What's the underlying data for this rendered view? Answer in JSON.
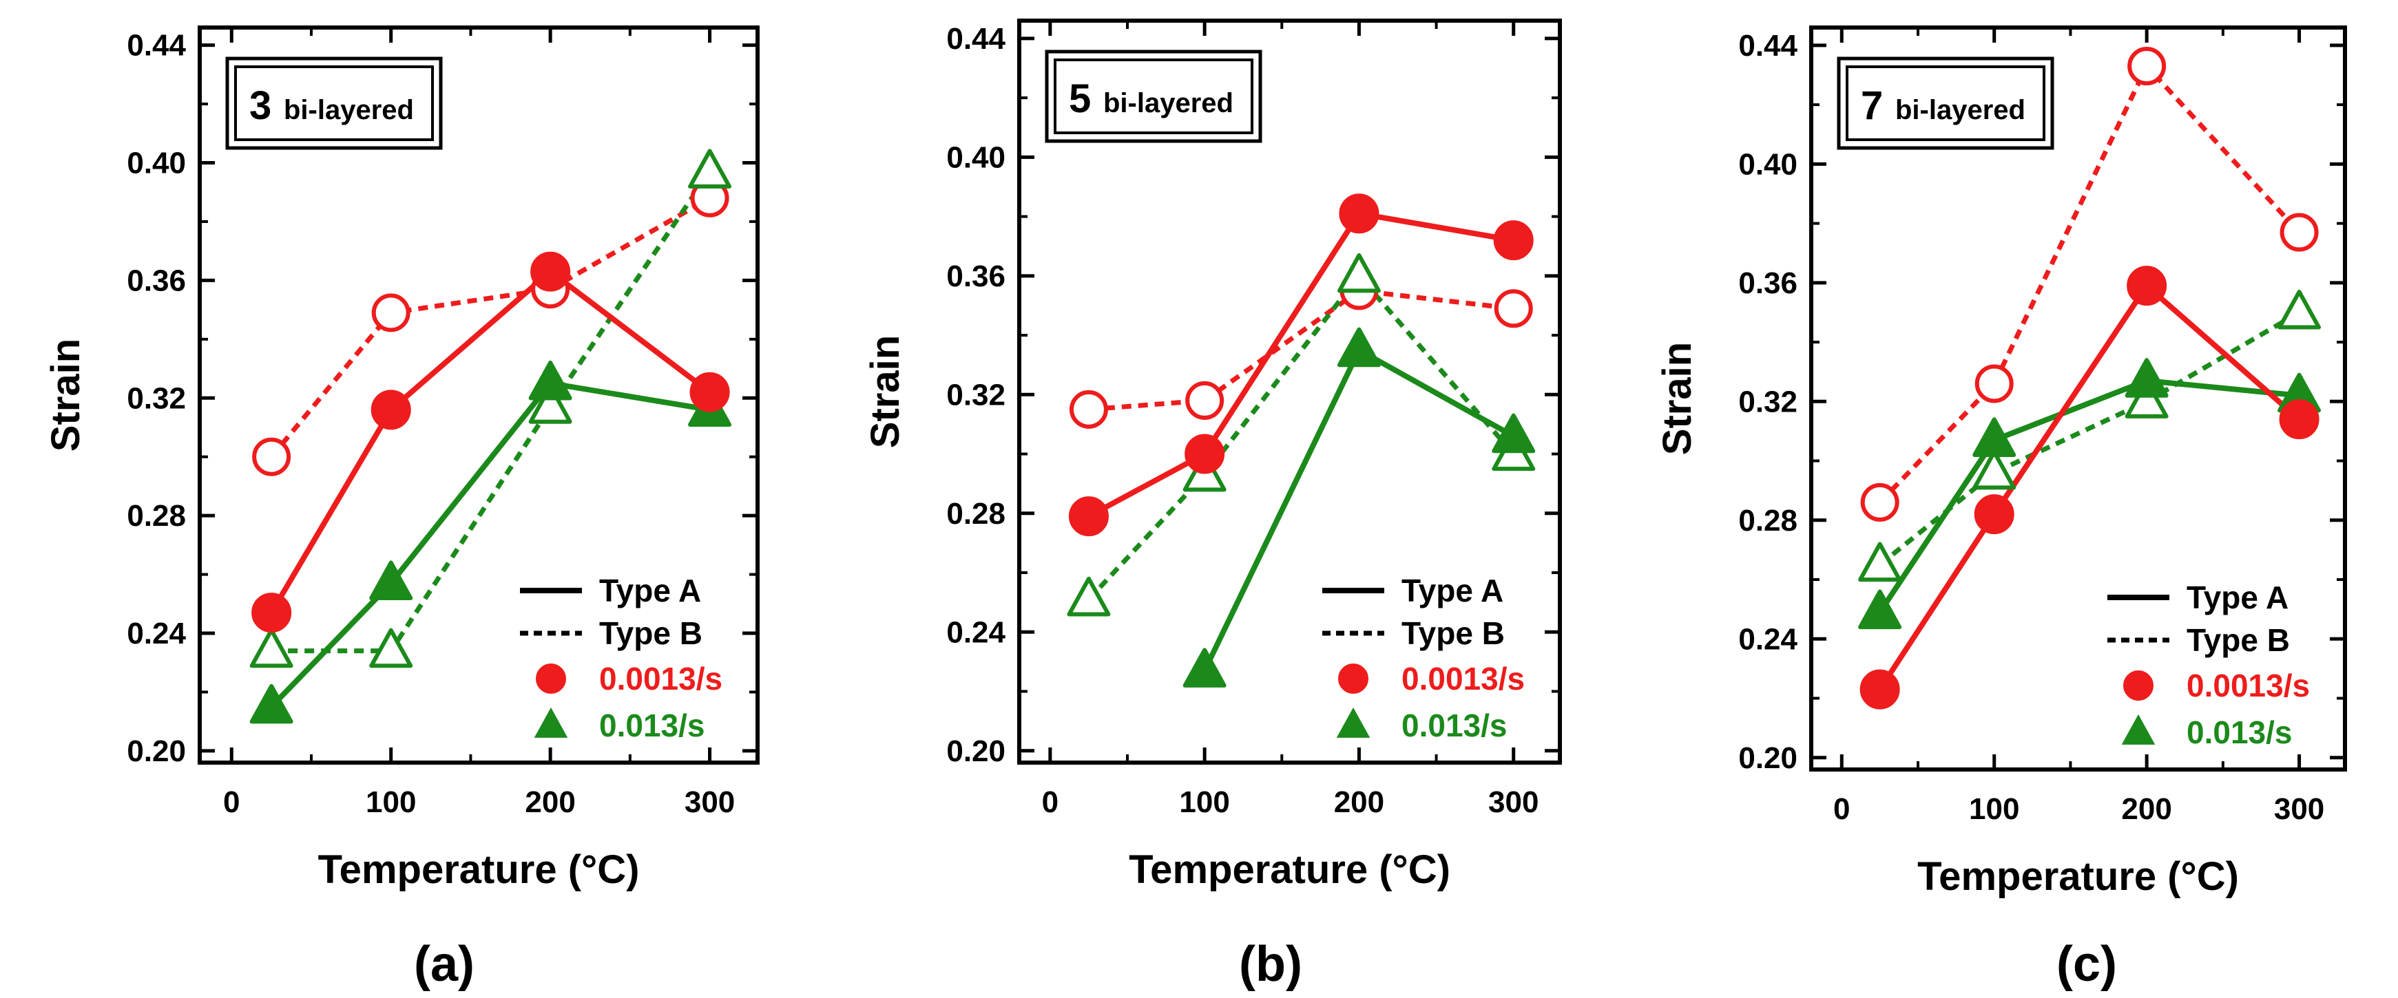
{
  "figure": {
    "panel_captions": [
      "(a)",
      "(b)",
      "(c)"
    ]
  },
  "colors": {
    "rate_1": "#ee1c1c",
    "rate_2": "#1b8a1b",
    "axis": "#000000"
  },
  "chart_data": [
    {
      "type": "line",
      "panel": "(a)",
      "label_number": "3",
      "label_text": "bi-layered",
      "xlabel": "Temperature (°C)",
      "ylabel": "Strain",
      "xlim": [
        -20,
        330
      ],
      "ylim": [
        0.196,
        0.446
      ],
      "xticks": [
        0,
        100,
        200,
        300
      ],
      "yticks": [
        0.2,
        0.24,
        0.28,
        0.32,
        0.36,
        0.4,
        0.44
      ],
      "x": [
        25,
        100,
        200,
        300
      ],
      "legend": {
        "solid": "Type A",
        "dotted": "Type B",
        "circle": "0.0013/s",
        "triangle": "0.013/s"
      },
      "series": [
        {
          "name": "Type A 0.0013/s",
          "style": "solid",
          "marker": "circle",
          "filled": true,
          "color": "#ee1c1c",
          "values": [
            0.247,
            0.316,
            0.363,
            0.322
          ]
        },
        {
          "name": "Type B 0.0013/s",
          "style": "dotted",
          "marker": "circle",
          "filled": false,
          "color": "#ee1c1c",
          "values": [
            0.3,
            0.349,
            0.357,
            0.388
          ]
        },
        {
          "name": "Type A 0.013/s",
          "style": "solid",
          "marker": "triangle",
          "filled": true,
          "color": "#1b8a1b",
          "values": [
            0.215,
            0.257,
            0.325,
            0.316
          ]
        },
        {
          "name": "Type B 0.013/s",
          "style": "dotted",
          "marker": "triangle",
          "filled": false,
          "color": "#1b8a1b",
          "values": [
            0.234,
            0.234,
            0.317,
            0.397
          ]
        }
      ]
    },
    {
      "type": "line",
      "panel": "(b)",
      "label_number": "5",
      "label_text": "bi-layered",
      "xlabel": "Temperature (°C)",
      "ylabel": "Strain",
      "xlim": [
        -20,
        330
      ],
      "ylim": [
        0.196,
        0.446
      ],
      "xticks": [
        0,
        100,
        200,
        300
      ],
      "yticks": [
        0.2,
        0.24,
        0.28,
        0.32,
        0.36,
        0.4,
        0.44
      ],
      "x": [
        25,
        100,
        200,
        300
      ],
      "legend": {
        "solid": "Type A",
        "dotted": "Type B",
        "circle": "0.0013/s",
        "triangle": "0.013/s"
      },
      "series": [
        {
          "name": "Type A 0.0013/s",
          "style": "solid",
          "marker": "circle",
          "filled": true,
          "color": "#ee1c1c",
          "values": [
            0.279,
            0.3,
            0.381,
            0.372
          ]
        },
        {
          "name": "Type B 0.0013/s",
          "style": "dotted",
          "marker": "circle",
          "filled": false,
          "color": "#ee1c1c",
          "values": [
            0.315,
            0.318,
            0.355,
            0.349
          ]
        },
        {
          "name": "Type A 0.013/s",
          "style": "solid",
          "marker": "triangle",
          "filled": true,
          "color": "#1b8a1b",
          "values": [
            null,
            0.227,
            0.335,
            0.306
          ]
        },
        {
          "name": "Type B 0.013/s",
          "style": "dotted",
          "marker": "triangle",
          "filled": false,
          "color": "#1b8a1b",
          "values": [
            0.251,
            0.293,
            0.36,
            0.3
          ]
        }
      ]
    },
    {
      "type": "line",
      "panel": "(c)",
      "label_number": "7",
      "label_text": "bi-layered",
      "xlabel": "Temperature (°C)",
      "ylabel": "Strain",
      "xlim": [
        -20,
        330
      ],
      "ylim": [
        0.196,
        0.446
      ],
      "xticks": [
        0,
        100,
        200,
        300
      ],
      "yticks": [
        0.2,
        0.24,
        0.28,
        0.32,
        0.36,
        0.4,
        0.44
      ],
      "x": [
        25,
        100,
        200,
        300
      ],
      "legend": {
        "solid": "Type A",
        "dotted": "Type B",
        "circle": "0.0013/s",
        "triangle": "0.013/s"
      },
      "series": [
        {
          "name": "Type A 0.0013/s",
          "style": "solid",
          "marker": "circle",
          "filled": true,
          "color": "#ee1c1c",
          "values": [
            0.223,
            0.282,
            0.359,
            0.314
          ]
        },
        {
          "name": "Type B 0.0013/s",
          "style": "dotted",
          "marker": "circle",
          "filled": false,
          "color": "#ee1c1c",
          "values": [
            0.286,
            0.326,
            0.433,
            0.377
          ]
        },
        {
          "name": "Type A 0.013/s",
          "style": "solid",
          "marker": "triangle",
          "filled": true,
          "color": "#1b8a1b",
          "values": [
            0.249,
            0.307,
            0.327,
            0.322
          ]
        },
        {
          "name": "Type B 0.013/s",
          "style": "dotted",
          "marker": "triangle",
          "filled": false,
          "color": "#1b8a1b",
          "values": [
            0.265,
            0.296,
            0.32,
            0.35
          ]
        }
      ]
    }
  ]
}
